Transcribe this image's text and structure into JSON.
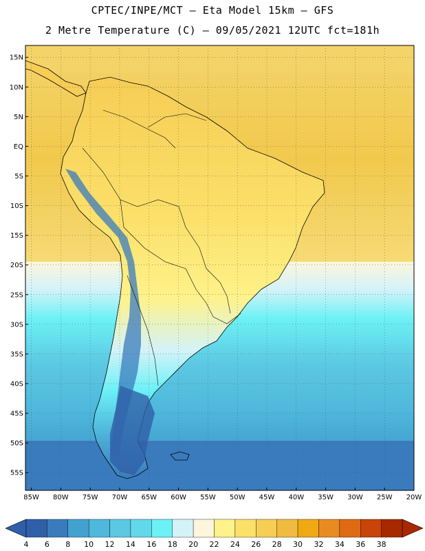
{
  "header": {
    "line1": "CPTEC/INPE/MCT –  Eta Model 15km – GFS",
    "line2": "2 Metre Temperature (C) – 09/05/2021 12UTC fct=181h"
  },
  "map": {
    "lat_labels": [
      "15N",
      "10N",
      "5N",
      "EQ",
      "5S",
      "10S",
      "15S",
      "20S",
      "25S",
      "30S",
      "35S",
      "40S",
      "45S",
      "50S",
      "55S"
    ],
    "lon_labels": [
      "85W",
      "80W",
      "75W",
      "70W",
      "65W",
      "60W",
      "55W",
      "50W",
      "45W",
      "40W",
      "35W",
      "30W",
      "25W",
      "20W"
    ],
    "lat_range": [
      17,
      -58
    ],
    "lon_range": [
      -86,
      -20
    ]
  },
  "colorbar": {
    "labels": [
      "4",
      "6",
      "8",
      "10",
      "12",
      "14",
      "16",
      "18",
      "20",
      "22",
      "24",
      "26",
      "28",
      "30",
      "32",
      "34",
      "36",
      "38"
    ],
    "colors": [
      "#2f5fa8",
      "#3a7bbd",
      "#43a1cf",
      "#4fb8dc",
      "#5cc8e2",
      "#62d8ea",
      "#6cf1f6",
      "#d4f3f8",
      "#fdf6dc",
      "#fef28a",
      "#fbe06a",
      "#f6cd55",
      "#f1bb3f",
      "#f0a814",
      "#e88c22",
      "#df6a14",
      "#c84408",
      "#a82800"
    ],
    "under_color": "#2f5fa8",
    "over_color": "#a82800"
  }
}
